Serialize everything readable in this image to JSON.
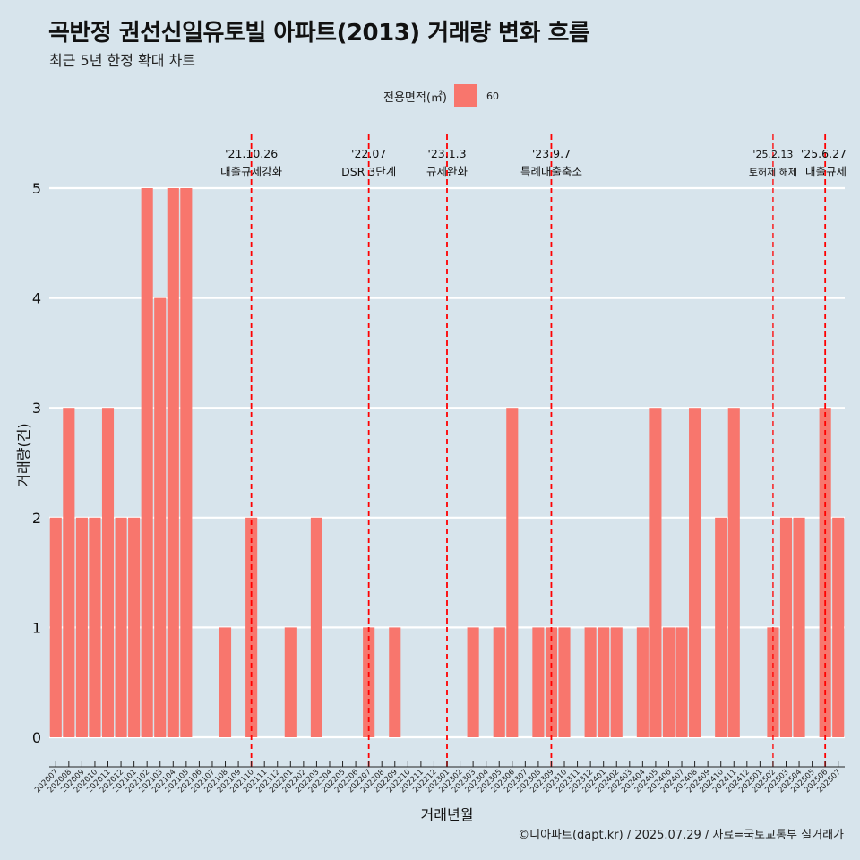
{
  "title": "곡반정 권선신일유토빌 아파트(2013) 거래량 변화 흐름",
  "subtitle": "최근 5년 한정 확대 차트",
  "caption": "©디아파트(dapt.kr) / 2025.07.29 / 자료=국토교통부 실거래가",
  "legend": {
    "title": "전용면적(㎡)",
    "label": "60"
  },
  "colors": {
    "background": "#d7e4ec",
    "bar": "#f8766d",
    "grid": "#ffffff",
    "event_line": "#ff0000"
  },
  "chart_data": {
    "type": "bar",
    "xlabel": "거래년월",
    "ylabel": "거래량(건)",
    "ylim": [
      0,
      5
    ],
    "yticks": [
      "0",
      "1",
      "2",
      "3",
      "4",
      "5"
    ],
    "grid": "horizontal",
    "legend_position": "top",
    "categories": [
      "202007",
      "202008",
      "202009",
      "202010",
      "202011",
      "202012",
      "202101",
      "202102",
      "202103",
      "202104",
      "202105",
      "202106",
      "202107",
      "202108",
      "202109",
      "202110",
      "202111",
      "202112",
      "202201",
      "202202",
      "202203",
      "202204",
      "202205",
      "202206",
      "202207",
      "202208",
      "202209",
      "202210",
      "202211",
      "202212",
      "202301",
      "202302",
      "202303",
      "202304",
      "202305",
      "202306",
      "202307",
      "202308",
      "202309",
      "202310",
      "202311",
      "202312",
      "202401",
      "202402",
      "202403",
      "202404",
      "202405",
      "202406",
      "202407",
      "202408",
      "202409",
      "202410",
      "202411",
      "202412",
      "202501",
      "202502",
      "202503",
      "202504",
      "202505",
      "202506",
      "202507"
    ],
    "series": [
      {
        "name": "60",
        "values": [
          2,
          3,
          2,
          2,
          3,
          2,
          2,
          5,
          4,
          5,
          5,
          0,
          0,
          1,
          0,
          2,
          0,
          0,
          1,
          0,
          2,
          0,
          0,
          0,
          1,
          0,
          1,
          0,
          0,
          0,
          0,
          0,
          1,
          0,
          1,
          3,
          0,
          1,
          1,
          1,
          0,
          1,
          1,
          1,
          0,
          1,
          3,
          1,
          1,
          3,
          0,
          2,
          3,
          0,
          0,
          1,
          2,
          2,
          0,
          3,
          2
        ]
      }
    ],
    "events": [
      {
        "date": "'21.10.26",
        "label": "대출규제강화",
        "category": "202110"
      },
      {
        "date": "'22.07",
        "label": "DSR 3단계",
        "category": "202207"
      },
      {
        "date": "'23.1.3",
        "label": "규제완화",
        "category": "202301"
      },
      {
        "date": "'23.9.7",
        "label": "특례대출축소",
        "category": "202309"
      },
      {
        "date": "'25.2.13",
        "label": "토허제 해제",
        "category": "202502"
      },
      {
        "date": "'25.6.27",
        "label": "대출규제",
        "category": "202506"
      }
    ]
  }
}
